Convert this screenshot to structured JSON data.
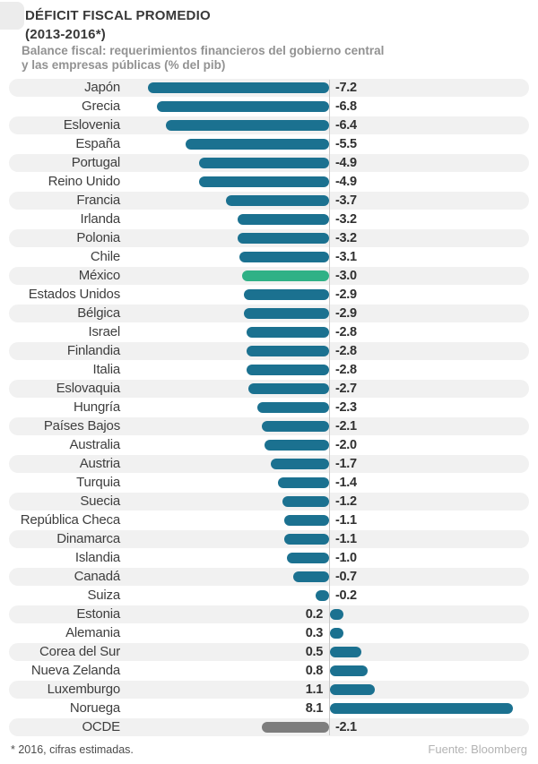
{
  "header": {
    "title_line1": "DÉFICIT FISCAL PROMEDIO",
    "title_line2": "(2013-2016*)",
    "subtitle_line1": "Balance fiscal: requerimientos financieros del gobierno central",
    "subtitle_line2": "y las empresas públicas (% del pib)"
  },
  "footer": {
    "note": "* 2016, cifras estimadas.",
    "source": "Fuente: Bloomberg"
  },
  "colors": {
    "bar_teal": "#1b7190",
    "bar_highlight_green": "#2fb186",
    "bar_summary_gray": "#7d7d7d",
    "row_stripe": "#f1f1f1",
    "zero_line": "#c9c9c9"
  },
  "chart_data": {
    "type": "bar",
    "orientation": "horizontal",
    "title": "DÉFICIT FISCAL PROMEDIO (2013-2016*)",
    "subtitle": "Balance fiscal: requerimientos financieros del gobierno central y las empresas públicas (% del pib)",
    "unit": "% del pib",
    "xlim": [
      -7.2,
      8.1
    ],
    "grid": false,
    "legend": false,
    "highlight_category": "México",
    "summary_category": "OCDE",
    "categories": [
      "Japón",
      "Grecia",
      "Eslovenia",
      "España",
      "Portugal",
      "Reino Unido",
      "Francia",
      "Irlanda",
      "Polonia",
      "Chile",
      "México",
      "Estados Unidos",
      "Bélgica",
      "Israel",
      "Finlandia",
      "Italia",
      "Eslovaquia",
      "Hungría",
      "Países Bajos",
      "Australia",
      "Austria",
      "Turquia",
      "Suecia",
      "República Checa",
      "Dinamarca",
      "Islandia",
      "Canadá",
      "Suiza",
      "Estonia",
      "Alemania",
      "Corea del Sur",
      "Nueva Zelanda",
      "Luxemburgo",
      "Noruega",
      "OCDE"
    ],
    "values": [
      -7.2,
      -6.8,
      -6.4,
      -5.5,
      -4.9,
      -4.9,
      -3.7,
      -3.2,
      -3.2,
      -3.1,
      -3.0,
      -2.9,
      -2.9,
      -2.8,
      -2.8,
      -2.8,
      -2.7,
      -2.3,
      -2.1,
      -2.0,
      -1.7,
      -1.4,
      -1.2,
      -1.1,
      -1.1,
      -1.0,
      -0.7,
      -0.2,
      0.2,
      0.3,
      0.5,
      0.8,
      1.1,
      8.1,
      -2.1
    ],
    "source": "Fuente: Bloomberg",
    "footnote": "* 2016, cifras estimadas."
  }
}
